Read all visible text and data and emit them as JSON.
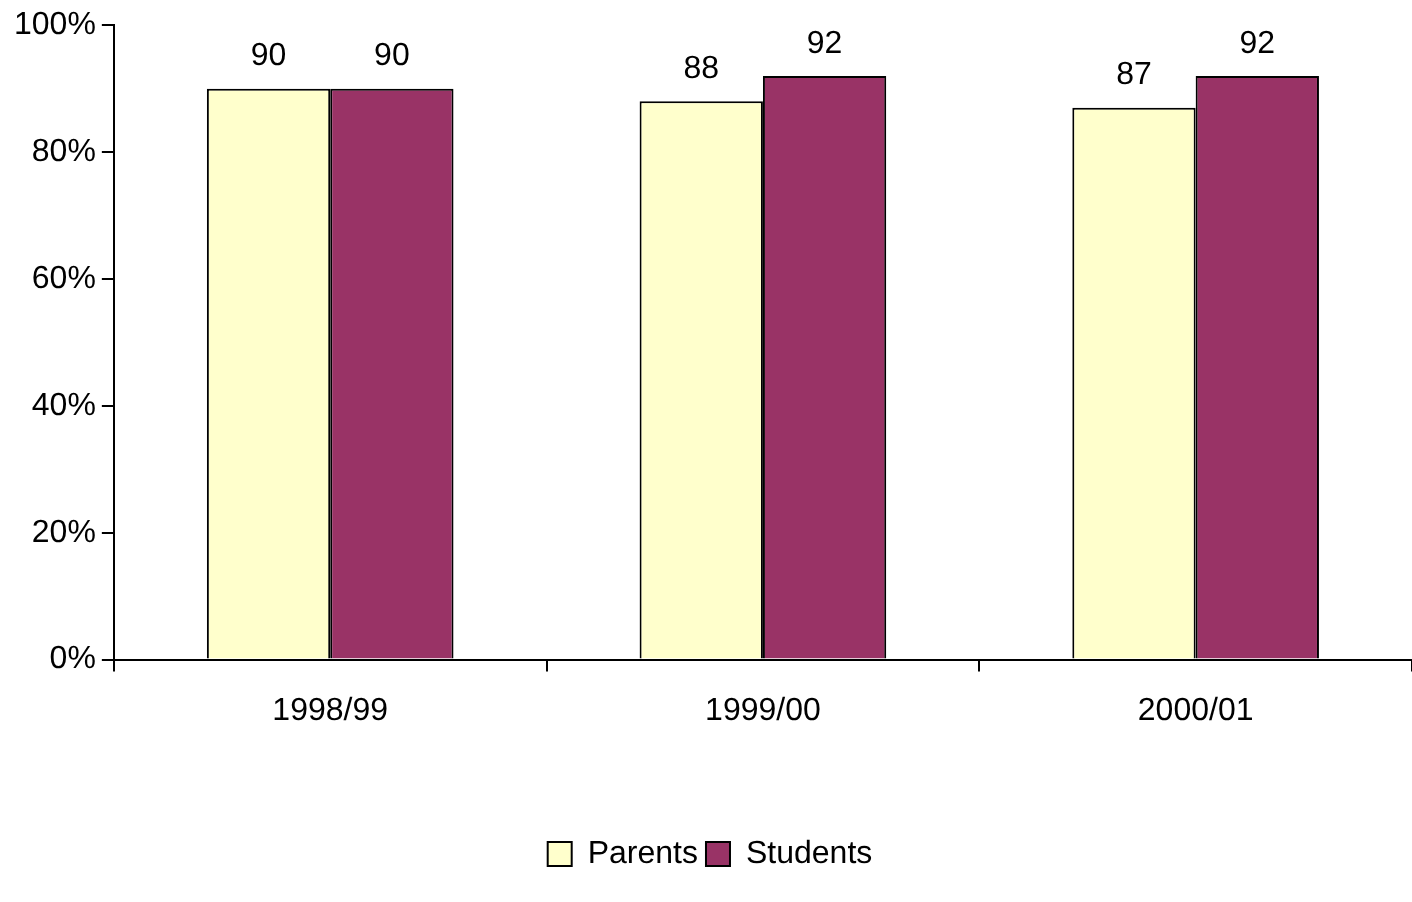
{
  "chart_data": {
    "type": "bar",
    "categories": [
      "1998/99",
      "1999/00",
      "2000/01"
    ],
    "series": [
      {
        "name": "Parents",
        "color": "#ffffcc",
        "values": [
          90,
          88,
          87
        ]
      },
      {
        "name": "Students",
        "color": "#993366",
        "values": [
          90,
          92,
          92
        ]
      }
    ],
    "ylim": [
      0,
      100
    ],
    "yticks": [
      {
        "value": 0,
        "label": "0%"
      },
      {
        "value": 20,
        "label": "20%"
      },
      {
        "value": 40,
        "label": "40%"
      },
      {
        "value": 60,
        "label": "60%"
      },
      {
        "value": 80,
        "label": "80%"
      },
      {
        "value": 100,
        "label": "100%"
      }
    ],
    "data_labels": true,
    "legend": "bottom"
  }
}
